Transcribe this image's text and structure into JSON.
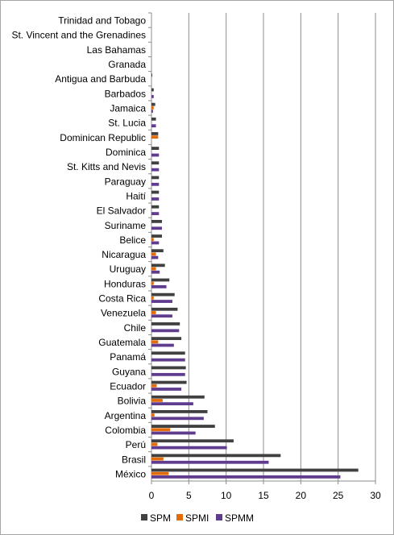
{
  "chart_data": {
    "type": "bar",
    "orientation": "horizontal",
    "categories": [
      "Trinidad and Tobago",
      "St. Vincent and the Grenadines",
      "Las Bahamas",
      "Granada",
      "Antigua and Barbuda",
      "Barbados",
      "Jamaica",
      "St. Lucia",
      "Dominican Republic",
      "Dominica",
      "St. Kitts and Nevis",
      "Paraguay",
      "Haití",
      "El Salvador",
      "Suriname",
      "Belice",
      "Nicaragua",
      "Uruguay",
      "Honduras",
      "Costa Rica",
      "Venezuela",
      "Chile",
      "Guatemala",
      "Panamá",
      "Guyana",
      "Ecuador",
      "Bolivia",
      "Argentina",
      "Colombia",
      "Perú",
      "Brasil",
      "México"
    ],
    "series": [
      {
        "name": "SPM",
        "color": "#404040",
        "values": [
          0,
          0,
          0,
          0,
          0.1,
          0.3,
          0.5,
          0.6,
          0.9,
          1.0,
          1.0,
          1.0,
          1.0,
          1.0,
          1.4,
          1.4,
          1.6,
          1.8,
          2.4,
          3.1,
          3.5,
          3.8,
          4.0,
          4.5,
          4.6,
          4.7,
          7.1,
          7.5,
          8.5,
          11.0,
          17.3,
          27.7
        ]
      },
      {
        "name": "SPMI",
        "color": "#e26b0a",
        "values": [
          0,
          0,
          0,
          0,
          0,
          0,
          0.3,
          0,
          0.9,
          0,
          0,
          0,
          0,
          0,
          0,
          0.3,
          0.6,
          0.6,
          0.3,
          0.3,
          0.6,
          0,
          0.9,
          0,
          0,
          0.7,
          1.5,
          0.4,
          2.5,
          0.8,
          1.6,
          2.3
        ]
      },
      {
        "name": "SPMM",
        "color": "#5f3c8e",
        "values": [
          0,
          0,
          0,
          0,
          0,
          0.3,
          0.2,
          0.6,
          0,
          1.0,
          1.0,
          1.0,
          1.0,
          1.0,
          1.4,
          1.0,
          0.9,
          1.1,
          2.0,
          2.8,
          2.8,
          3.7,
          3.0,
          4.5,
          4.5,
          4.0,
          5.6,
          7.0,
          5.9,
          10.1,
          15.7,
          25.3
        ]
      }
    ],
    "xlim": [
      0,
      30
    ],
    "x_ticks": [
      "0",
      "5",
      "10",
      "15",
      "20",
      "25",
      "30"
    ],
    "grid": "vertical",
    "legend_position": "bottom"
  }
}
